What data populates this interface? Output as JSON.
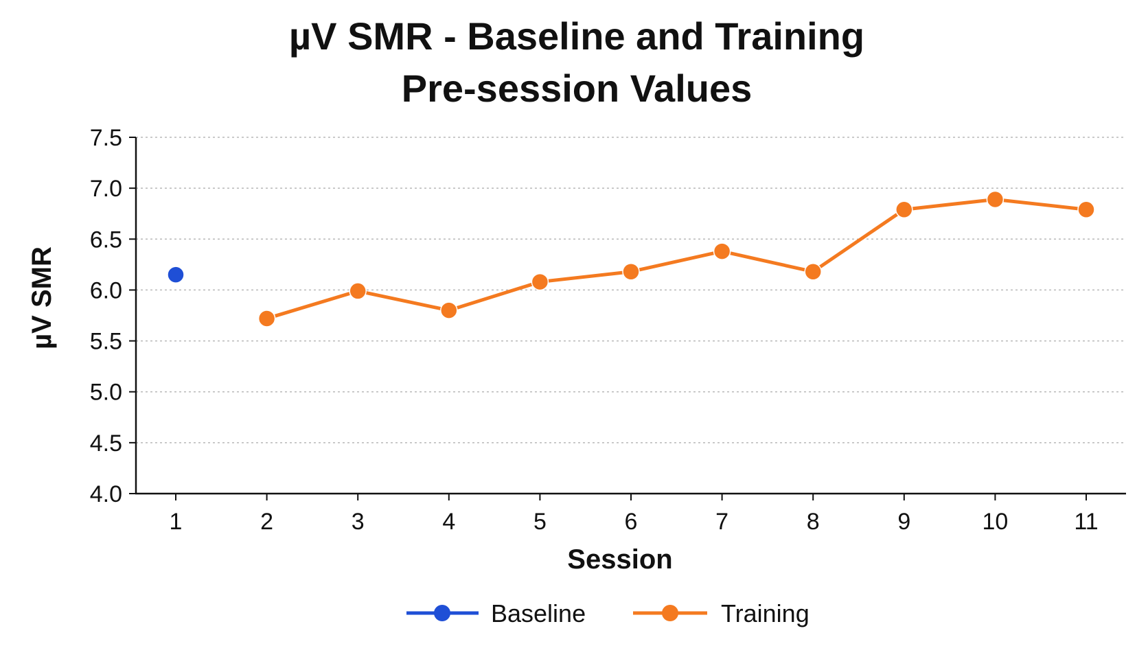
{
  "chart_data": {
    "type": "line",
    "title": [
      "µV SMR - Baseline and Training",
      "Pre-session Values"
    ],
    "xlabel": "Session",
    "ylabel": "µV SMR",
    "x": [
      1,
      2,
      3,
      4,
      5,
      6,
      7,
      8,
      9,
      10,
      11
    ],
    "x_tick_labels": [
      "1",
      "2",
      "3",
      "4",
      "5",
      "6",
      "7",
      "8",
      "9",
      "10",
      "11"
    ],
    "ylim": [
      4.0,
      7.5
    ],
    "y_ticks": [
      4.0,
      4.5,
      5.0,
      5.5,
      6.0,
      6.5,
      7.0,
      7.5
    ],
    "y_tick_labels": [
      "4.0",
      "4.5",
      "5.0",
      "5.5",
      "6.0",
      "6.5",
      "7.0",
      "7.5"
    ],
    "grid": "horizontal dotted",
    "legend_position": "bottom",
    "series": [
      {
        "name": "Baseline",
        "color": "#1f4fd6",
        "points": [
          [
            1,
            6.15
          ]
        ]
      },
      {
        "name": "Training",
        "color": "#f47a20",
        "points": [
          [
            2,
            5.72
          ],
          [
            3,
            5.99
          ],
          [
            4,
            5.8
          ],
          [
            5,
            6.08
          ],
          [
            6,
            6.18
          ],
          [
            7,
            6.38
          ],
          [
            8,
            6.18
          ],
          [
            9,
            6.79
          ],
          [
            10,
            6.89
          ],
          [
            11,
            6.79
          ]
        ]
      }
    ]
  }
}
